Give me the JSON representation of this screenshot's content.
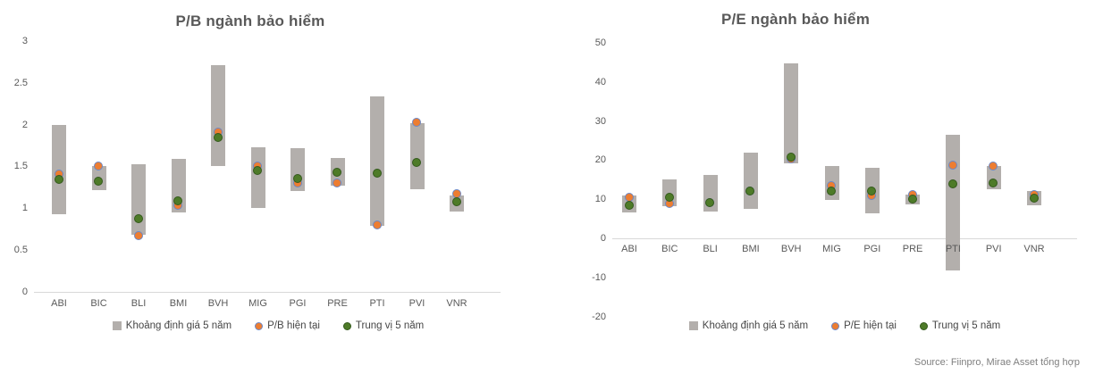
{
  "source": "Source: Fiinpro, Mirae Asset tổng hợp",
  "colors": {
    "range_bar": "#b3afac",
    "current_fill": "#ED7D31",
    "current_ring": "#6c87c5",
    "median_fill": "#4e7b28",
    "median_ring": "#33591c",
    "axis_line": "#d9d9d9",
    "text": "#595959"
  },
  "chart_data": [
    {
      "type": "bar",
      "subtype": "floating-range-with-dot-markers",
      "title": "P/B ngành bảo hiểm",
      "categories": [
        "ABI",
        "BIC",
        "BLI",
        "BMI",
        "BVH",
        "MIG",
        "PGI",
        "PRE",
        "PTI",
        "PVI",
        "VNR"
      ],
      "series": [
        {
          "name": "Khoảng định giá 5 năm",
          "kind": "range",
          "low": [
            0.93,
            1.22,
            0.68,
            0.95,
            1.5,
            1.0,
            1.21,
            1.27,
            0.79,
            1.23,
            0.96
          ],
          "high": [
            2.0,
            1.51,
            1.53,
            1.59,
            2.71,
            1.73,
            1.72,
            1.6,
            2.34,
            2.02,
            1.15
          ]
        },
        {
          "name": "P/B hiện tại",
          "kind": "current",
          "values": [
            1.4,
            1.5,
            0.67,
            1.03,
            1.91,
            1.5,
            1.3,
            1.3,
            0.8,
            2.02,
            1.17
          ]
        },
        {
          "name": "Trung vị 5 năm",
          "kind": "median",
          "values": [
            1.34,
            1.32,
            0.87,
            1.08,
            1.84,
            1.45,
            1.35,
            1.43,
            1.41,
            1.54,
            1.07
          ]
        }
      ],
      "ylim": [
        0,
        3
      ],
      "y_tick_labels": [
        "0",
        "0.5",
        "1",
        "1.5",
        "2",
        "2.5",
        "3"
      ],
      "grid": false,
      "legend_position": "bottom"
    },
    {
      "type": "bar",
      "subtype": "floating-range-with-dot-markers",
      "title": "P/E ngành bảo hiểm",
      "categories": [
        "ABI",
        "BIC",
        "BLI",
        "BMI",
        "BVH",
        "MIG",
        "PGI",
        "PRE",
        "PTI",
        "PVI",
        "VNR"
      ],
      "series": [
        {
          "name": "Khoảng định giá 5 năm",
          "kind": "range",
          "low": [
            6.6,
            8.2,
            6.8,
            7.6,
            19.2,
            9.8,
            6.5,
            8.6,
            -8.2,
            12.5,
            8.4
          ],
          "high": [
            10.9,
            15.0,
            16.1,
            21.8,
            44.8,
            18.5,
            18.0,
            11.1,
            26.4,
            18.5,
            12.0
          ]
        },
        {
          "name": "P/E hiện tại",
          "kind": "current",
          "values": [
            10.3,
            8.9,
            9.1,
            12.0,
            20.2,
            13.4,
            10.8,
            11.0,
            18.6,
            18.4,
            11.1
          ]
        },
        {
          "name": "Trung vị 5 năm",
          "kind": "median",
          "values": [
            8.3,
            10.3,
            9.1,
            12.0,
            20.6,
            11.9,
            12.0,
            10.0,
            13.9,
            14.1,
            10.1
          ]
        }
      ],
      "ylim": [
        -20,
        50
      ],
      "y_tick_labels": [
        "-20",
        "-10",
        "0",
        "10",
        "20",
        "30",
        "40",
        "50"
      ],
      "grid": false,
      "legend_position": "bottom"
    }
  ]
}
